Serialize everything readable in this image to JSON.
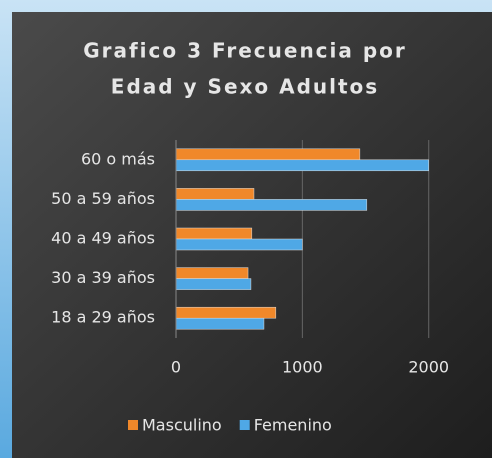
{
  "chart_data": {
    "type": "hbar",
    "title": "Grafico 3 Frecuencia por",
    "title_line2": "Edad y Sexo Adultos",
    "categories": [
      "60 o más",
      "50 a 59 años",
      "40 a 49 años",
      "30 a 39 años",
      "18 a 29 años"
    ],
    "series": [
      {
        "name": "Masculino",
        "color": "#f0882a",
        "values": [
          1455,
          617,
          600,
          570,
          790
        ]
      },
      {
        "name": "Femenino",
        "color": "#4fa8e6",
        "values": [
          2000,
          1510,
          1000,
          593,
          696
        ]
      }
    ],
    "xlim": [
      0,
      2200
    ],
    "xticks": [
      0,
      1000,
      2000
    ],
    "grid": true
  }
}
